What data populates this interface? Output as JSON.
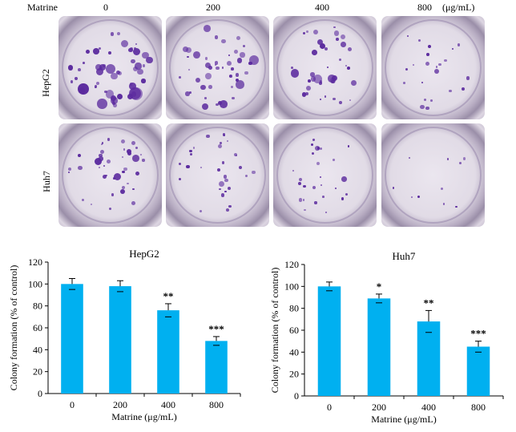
{
  "header": {
    "matrine_label": "Matrine",
    "doses": [
      "0",
      "200",
      "400",
      "800"
    ],
    "unit": "(μg/mL)"
  },
  "rows": [
    "HepG2",
    "Huh7"
  ],
  "colors": {
    "bar": "#00b0f0",
    "colony": "#5b2a9e"
  },
  "chart_data": [
    {
      "type": "bar",
      "title": "HepG2",
      "categories": [
        "0",
        "200",
        "400",
        "800"
      ],
      "values": [
        100,
        98,
        76,
        48
      ],
      "errors": [
        5,
        5,
        6,
        4
      ],
      "significance": [
        "",
        "",
        "**",
        "***"
      ],
      "xlabel": "Matrine (μg/mL)",
      "ylabel": "Colony formation (% of control)",
      "ylim": [
        0,
        120
      ],
      "yticks": [
        0,
        20,
        40,
        60,
        80,
        100,
        120
      ]
    },
    {
      "type": "bar",
      "title": "Huh7",
      "categories": [
        "0",
        "200",
        "400",
        "800"
      ],
      "values": [
        100,
        89,
        68,
        45
      ],
      "errors": [
        4,
        4,
        10,
        5
      ],
      "significance": [
        "",
        "*",
        "**",
        "***"
      ],
      "xlabel": "Matrine (μg/mL)",
      "ylabel": "Colony formation (% of control)",
      "ylim": [
        0,
        120
      ],
      "yticks": [
        0,
        20,
        40,
        60,
        80,
        100,
        120
      ]
    }
  ]
}
